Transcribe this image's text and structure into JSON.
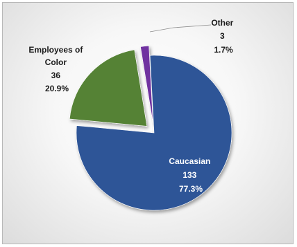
{
  "chart_data": {
    "type": "pie",
    "exploded": true,
    "slices": [
      {
        "label": "Caucasian",
        "value": 133,
        "percent": "77.3%",
        "color": "#2f5597",
        "label_color": "#ffffff"
      },
      {
        "label": "Employees of Color",
        "value": 36,
        "percent": "20.9%",
        "color": "#548235",
        "label_color": "#1a1a1a"
      },
      {
        "label": "Other",
        "value": 3,
        "percent": "1.7%",
        "color": "#7030a0",
        "label_color": "#1a1a1a"
      }
    ],
    "label_lines": {
      "caucasian": [
        "Caucasian",
        "133",
        "77.3%"
      ],
      "employees_of_color": [
        "Employees of",
        "Color",
        "36",
        "20.9%"
      ],
      "other": [
        "Other",
        "3",
        "1.7%"
      ]
    }
  }
}
